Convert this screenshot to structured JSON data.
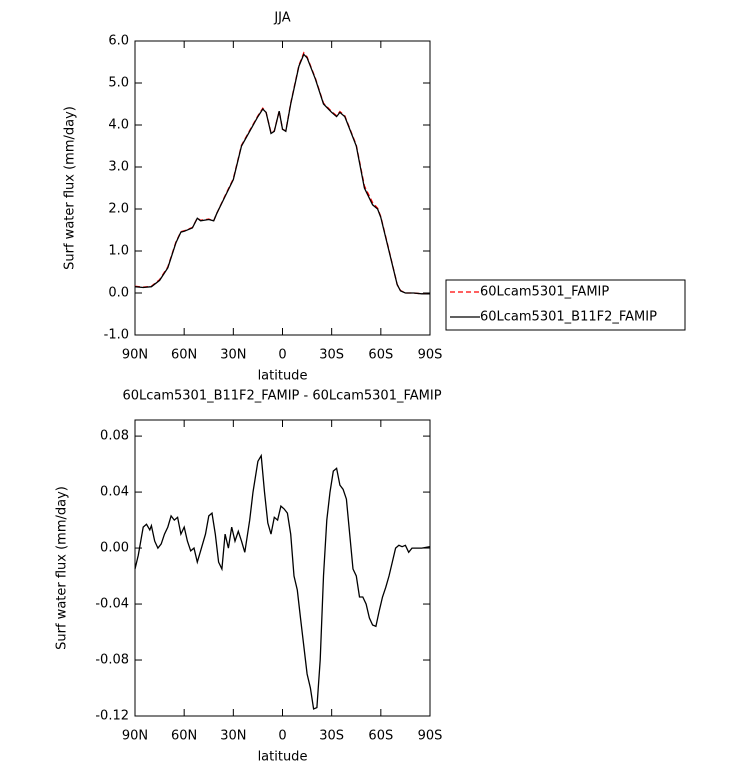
{
  "chart_data": [
    {
      "type": "line",
      "title": "JJA",
      "xlabel": "latitude",
      "ylabel": "Surf water flux (mm/day)",
      "x": [
        90,
        85,
        80,
        75,
        70,
        65,
        62,
        60,
        55,
        52,
        50,
        45,
        42,
        40,
        35,
        30,
        25,
        20,
        15,
        12,
        10,
        7,
        5,
        2,
        0,
        -2,
        -5,
        -10,
        -13,
        -15,
        -20,
        -25,
        -30,
        -33,
        -35,
        -38,
        -40,
        -45,
        -50,
        -55,
        -58,
        -60,
        -65,
        -70,
        -72,
        -75,
        -80,
        -85,
        -90
      ],
      "series": [
        {
          "name": "60Lcam5301_FAMIP",
          "color": "#ff0000",
          "line_style": "dashed",
          "values": [
            0.16,
            0.14,
            0.16,
            0.32,
            0.62,
            1.22,
            1.46,
            1.48,
            1.56,
            1.78,
            1.73,
            1.76,
            1.72,
            1.9,
            2.32,
            2.72,
            3.52,
            3.87,
            4.22,
            4.4,
            4.3,
            3.82,
            3.86,
            4.33,
            3.9,
            3.86,
            4.52,
            5.42,
            5.72,
            5.62,
            5.12,
            4.52,
            4.32,
            4.22,
            4.32,
            4.22,
            4.02,
            3.52,
            2.55,
            2.15,
            2.02,
            1.82,
            1.02,
            0.2,
            0.06,
            0.0,
            0.0,
            -0.02,
            -0.02
          ]
        },
        {
          "name": "60Lcam5301_B11F2_FAMIP",
          "color": "#000000",
          "line_style": "solid",
          "values": [
            0.15,
            0.13,
            0.15,
            0.3,
            0.6,
            1.2,
            1.45,
            1.47,
            1.55,
            1.78,
            1.72,
            1.75,
            1.72,
            1.9,
            2.3,
            2.7,
            3.5,
            3.85,
            4.2,
            4.38,
            4.3,
            3.8,
            3.85,
            4.33,
            3.9,
            3.85,
            4.5,
            5.4,
            5.68,
            5.6,
            5.1,
            4.5,
            4.3,
            4.2,
            4.3,
            4.2,
            4.0,
            3.5,
            2.5,
            2.1,
            2.0,
            1.8,
            1.0,
            0.2,
            0.05,
            0.0,
            0.0,
            -0.02,
            -0.02
          ]
        }
      ],
      "xlim": [
        90,
        -90
      ],
      "xticks": [
        {
          "value": 90,
          "label": "90N"
        },
        {
          "value": 60,
          "label": "60N"
        },
        {
          "value": 30,
          "label": "30N"
        },
        0,
        {
          "value": -30,
          "label": "30S"
        },
        {
          "value": -60,
          "label": "60S"
        },
        {
          "value": -90,
          "label": "90S"
        }
      ],
      "ylim": [
        -1,
        6
      ],
      "yticks": [
        {
          "value": -1,
          "label": "-1.0"
        },
        {
          "value": 0,
          "label": "0.0"
        },
        {
          "value": 1,
          "label": "1.0"
        },
        {
          "value": 2,
          "label": "2.0"
        },
        {
          "value": 3,
          "label": "3.0"
        },
        {
          "value": 4,
          "label": "4.0"
        },
        {
          "value": 5,
          "label": "5.0"
        },
        {
          "value": 6,
          "label": "6.0"
        }
      ],
      "legend": "right"
    },
    {
      "type": "line",
      "title": "60Lcam5301_B11F2_FAMIP - 60Lcam5301_FAMIP",
      "xlabel": "latitude",
      "ylabel": "Surf water flux (mm/day)",
      "x": [
        90,
        88,
        85,
        83,
        81,
        80,
        78,
        76,
        74,
        72,
        70,
        68,
        66,
        64,
        62,
        60,
        58,
        56,
        54,
        52,
        50,
        47,
        45,
        43,
        41,
        39,
        37,
        35,
        33,
        31,
        29,
        27,
        25,
        23,
        20,
        18,
        15,
        13,
        11,
        9,
        7,
        5,
        3,
        1,
        -1,
        -3,
        -5,
        -7,
        -9,
        -11,
        -13,
        -15,
        -17,
        -19,
        -21,
        -23,
        -25,
        -27,
        -29,
        -31,
        -33,
        -35,
        -37,
        -39,
        -41,
        -43,
        -45,
        -47,
        -49,
        -51,
        -53,
        -55,
        -57,
        -59,
        -61,
        -63,
        -65,
        -67,
        -69,
        -71,
        -73,
        -75,
        -77,
        -79,
        -81,
        -85,
        -90
      ],
      "color": "#000000",
      "values": [
        -0.015,
        -0.005,
        0.015,
        0.017,
        0.013,
        0.016,
        0.005,
        0.0,
        0.003,
        0.01,
        0.015,
        0.023,
        0.02,
        0.022,
        0.01,
        0.015,
        0.005,
        -0.002,
        0.0,
        -0.01,
        -0.002,
        0.01,
        0.023,
        0.025,
        0.01,
        -0.01,
        -0.015,
        0.01,
        0.0,
        0.015,
        0.005,
        0.012,
        0.005,
        -0.003,
        0.02,
        0.04,
        0.062,
        0.066,
        0.04,
        0.018,
        0.01,
        0.022,
        0.02,
        0.03,
        0.028,
        0.025,
        0.01,
        -0.02,
        -0.03,
        -0.05,
        -0.07,
        -0.09,
        -0.1,
        -0.115,
        -0.114,
        -0.08,
        -0.02,
        0.02,
        0.04,
        0.055,
        0.057,
        0.045,
        0.042,
        0.035,
        0.01,
        -0.015,
        -0.02,
        -0.035,
        -0.035,
        -0.04,
        -0.05,
        -0.055,
        -0.056,
        -0.045,
        -0.035,
        -0.028,
        -0.02,
        -0.01,
        0.0,
        0.002,
        0.001,
        0.002,
        -0.003,
        0.0,
        0.0,
        0.0,
        0.001
      ],
      "xlim": [
        90,
        -90
      ],
      "xticks": [
        {
          "value": 90,
          "label": "90N"
        },
        {
          "value": 60,
          "label": "60N"
        },
        {
          "value": 30,
          "label": "30N"
        },
        0,
        {
          "value": -30,
          "label": "30S"
        },
        {
          "value": -60,
          "label": "60S"
        },
        {
          "value": -90,
          "label": "90S"
        }
      ],
      "ylim": [
        -0.12,
        0.0915
      ],
      "yticks": [
        -0.12,
        -0.08,
        -0.04,
        {
          "value": 0,
          "label": "0.00"
        },
        0.04,
        0.08
      ]
    }
  ]
}
